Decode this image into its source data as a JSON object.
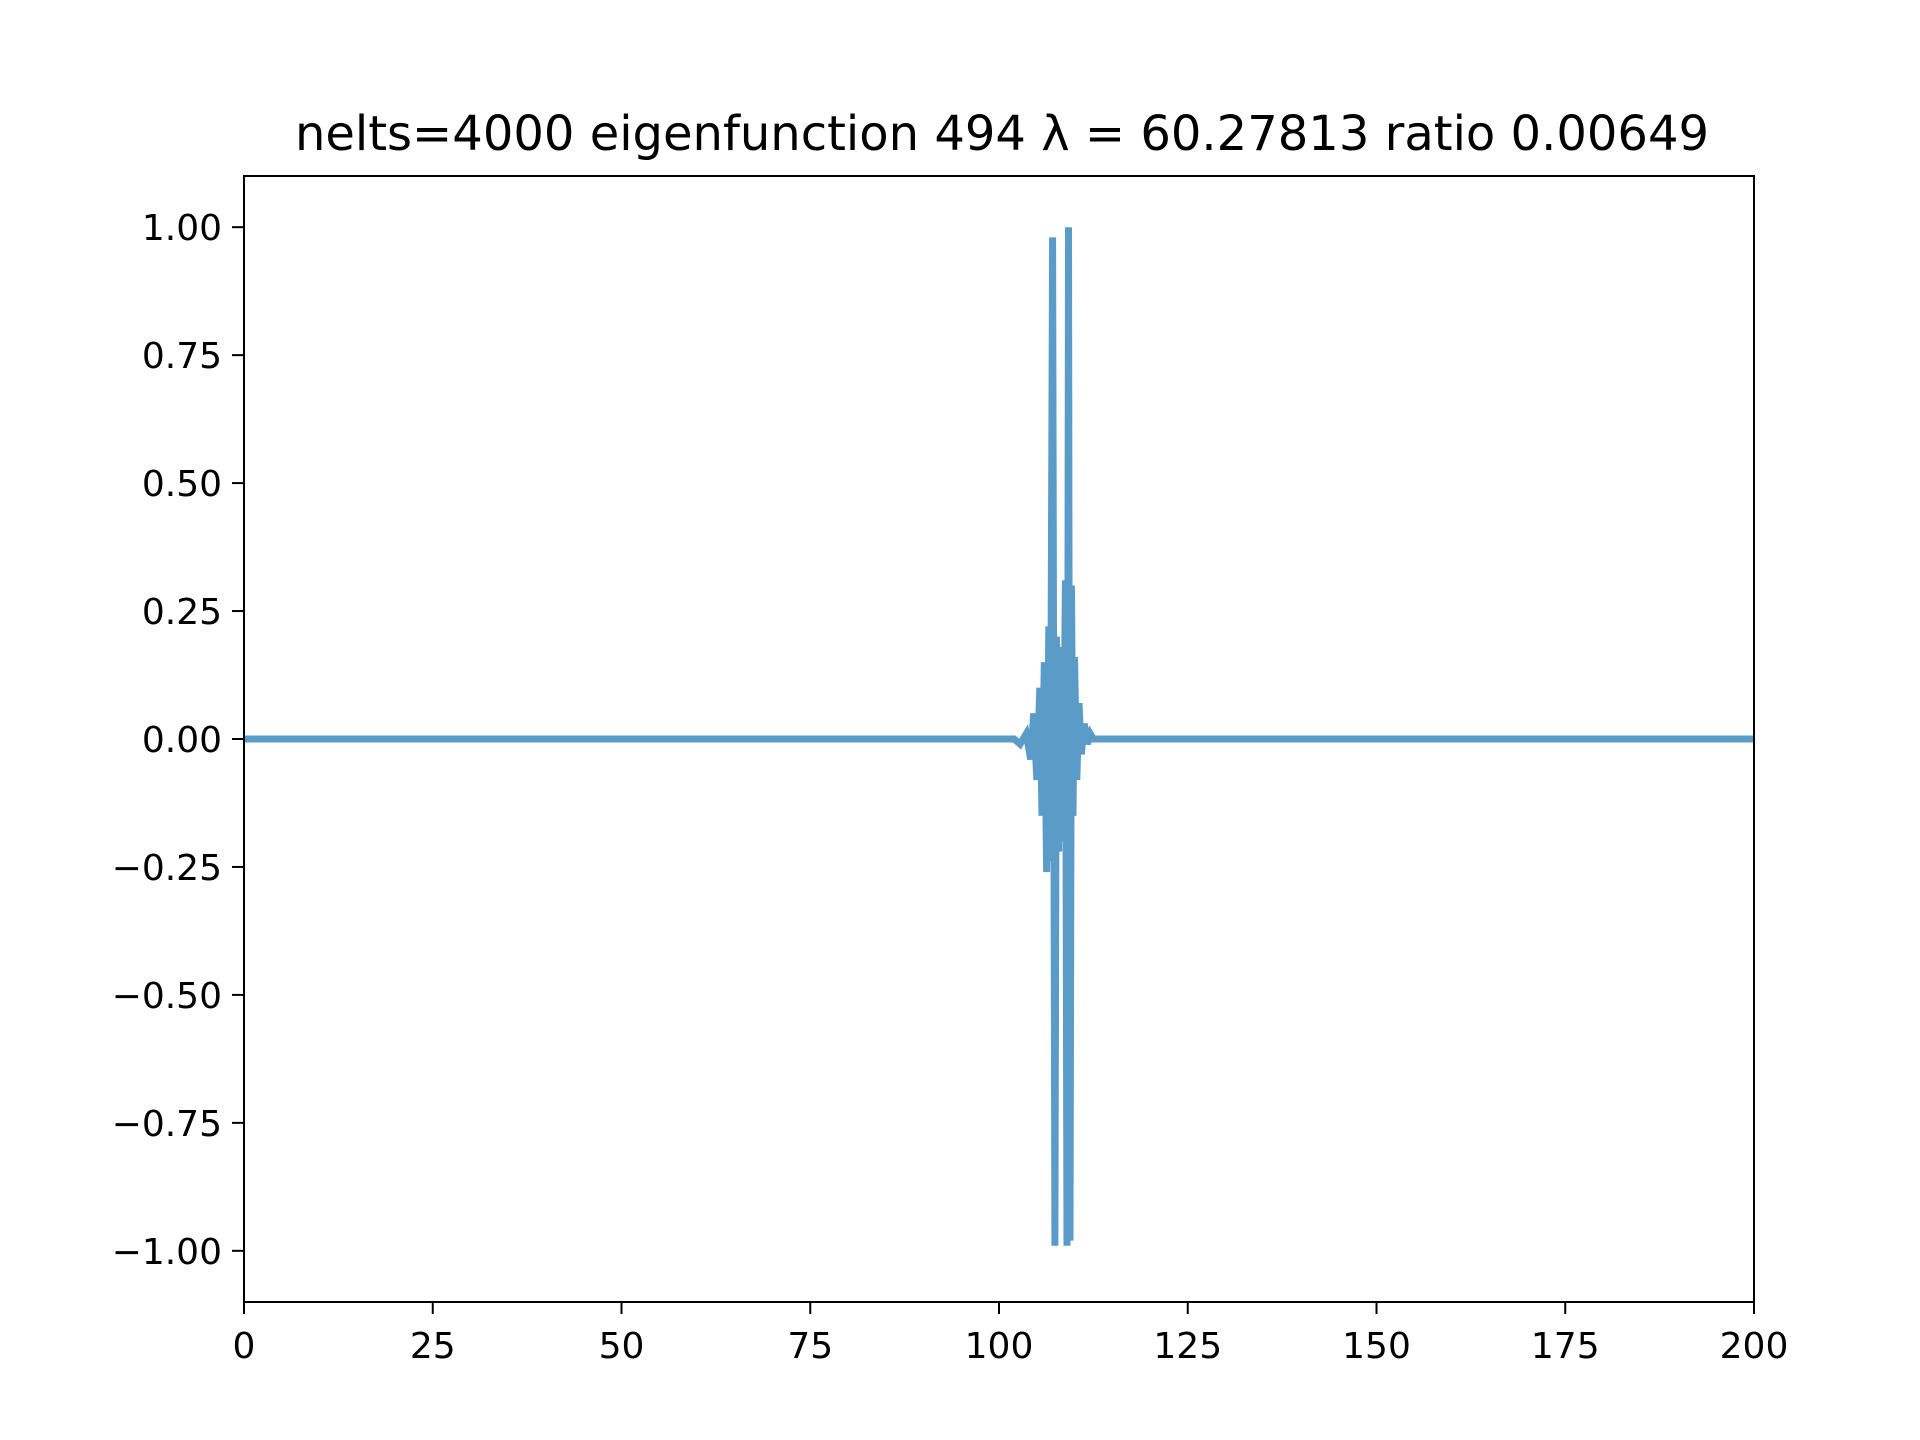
{
  "chart_data": {
    "type": "line",
    "title": "nelts=4000  eigenfunction 494  λ = 60.27813 ratio 0.00649",
    "xlabel": "",
    "ylabel": "",
    "xlim": [
      0,
      200
    ],
    "ylim": [
      -1.1,
      1.1
    ],
    "xticks": [
      0,
      25,
      50,
      75,
      100,
      125,
      150,
      175,
      200
    ],
    "xtick_labels": [
      "0",
      "25",
      "50",
      "75",
      "100",
      "125",
      "150",
      "175",
      "200"
    ],
    "yticks": [
      1.0,
      0.75,
      0.5,
      0.25,
      0.0,
      -0.25,
      -0.5,
      -0.75,
      -1.0
    ],
    "ytick_labels": [
      "1.00",
      "0.75",
      "0.50",
      "0.25",
      "0.00",
      "−0.25",
      "−0.50",
      "−0.75",
      "−1.00"
    ],
    "grid": false,
    "line_color": "#5b9bc8",
    "series": [
      {
        "x": [
          0,
          102.0,
          102.8,
          103.6,
          104.2,
          104.6,
          105.0,
          105.4,
          105.7,
          106.0,
          106.3,
          106.6,
          106.8,
          107.1,
          107.4,
          107.6,
          107.9,
          108.2,
          108.5,
          108.8,
          109.0,
          109.2,
          109.4,
          109.6,
          109.8,
          110.0,
          110.3,
          110.6,
          110.9,
          111.3,
          111.7,
          112.1,
          112.5,
          113.0,
          113.6,
          200
        ],
        "y": [
          0.0,
          0.0,
          -0.01,
          0.01,
          -0.04,
          0.05,
          -0.08,
          0.1,
          -0.15,
          0.15,
          -0.26,
          0.22,
          -0.24,
          0.98,
          -0.99,
          0.2,
          -0.22,
          0.18,
          -0.2,
          0.31,
          -0.99,
          1.0,
          -0.98,
          0.3,
          -0.15,
          0.16,
          -0.08,
          0.07,
          -0.03,
          0.03,
          -0.01,
          0.01,
          0.0,
          0.0,
          0.0,
          0.0
        ]
      }
    ]
  }
}
